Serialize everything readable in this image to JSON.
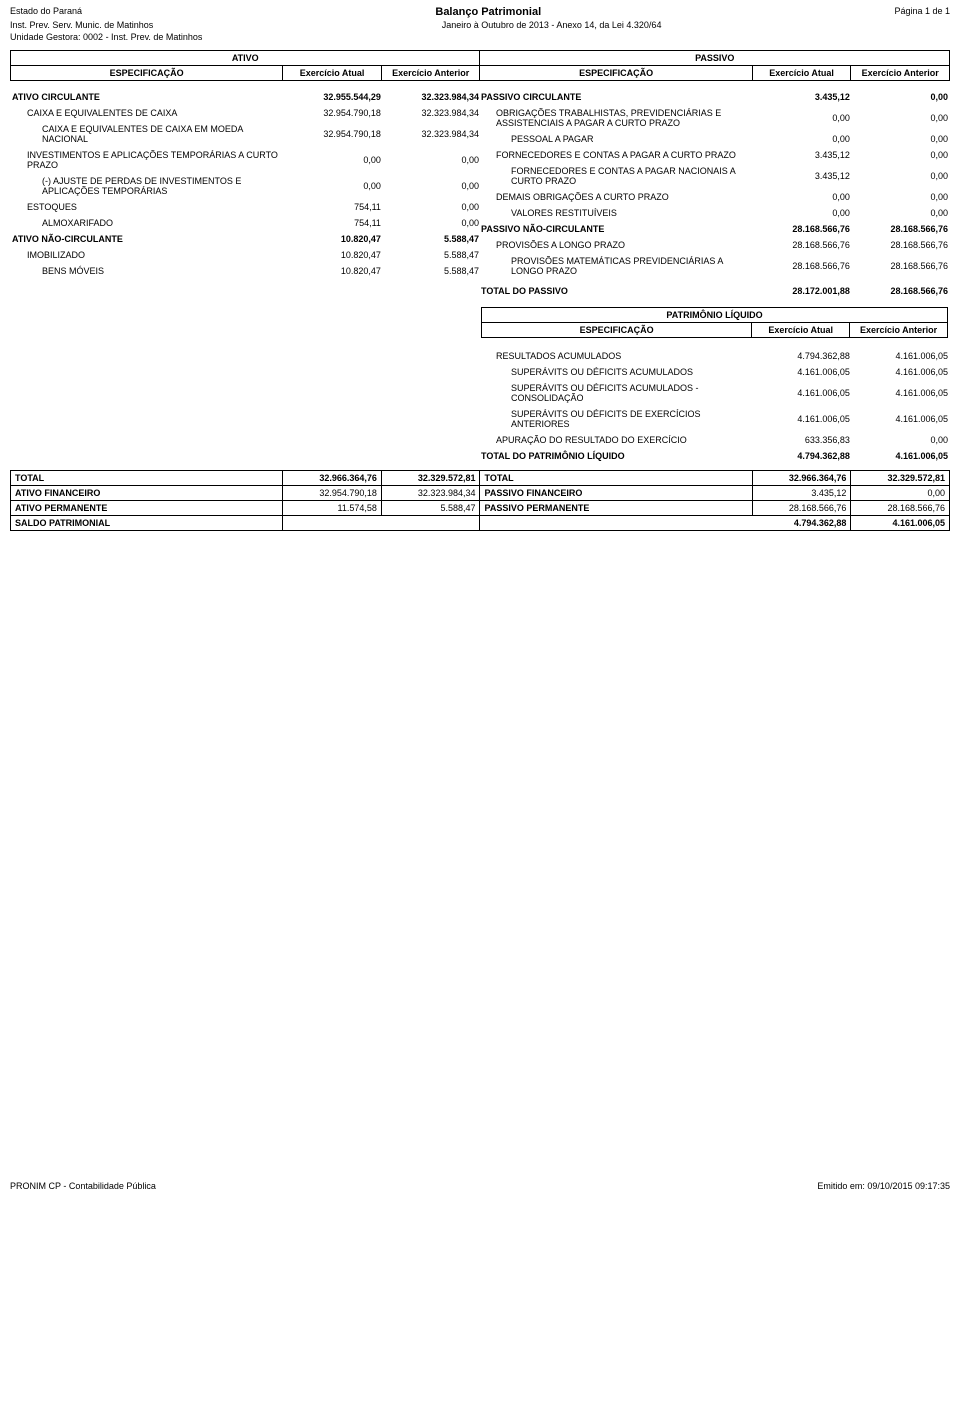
{
  "header": {
    "estado": "Estado do Paraná",
    "inst": "Inst. Prev. Serv. Munic. de Matinhos",
    "unidade": "Unidade Gestora: 0002 - Inst. Prev. de Matinhos",
    "title": "Balanço Patrimonial",
    "periodo": "Janeiro à Outubro de 2013 - Anexo 14, da Lei 4.320/64",
    "pagina": "Página 1 de 1"
  },
  "labels": {
    "ativo": "ATIVO",
    "passivo": "PASSIVO",
    "especificacao": "ESPECIFICAÇÃO",
    "ex_atual": "Exercício Atual",
    "ex_anterior": "Exercício Anterior",
    "patrimonio": "PATRIMÔNIO LÍQUIDO",
    "total_passivo": "TOTAL DO PASSIVO",
    "total_pl": "TOTAL DO PATRIMÔNIO LÍQUIDO",
    "total": "TOTAL",
    "ativo_fin": "ATIVO FINANCEIRO",
    "ativo_perm": "ATIVO PERMANENTE",
    "passivo_fin": "PASSIVO FINANCEIRO",
    "passivo_perm": "PASSIVO PERMANENTE",
    "saldo": "SALDO PATRIMONIAL"
  },
  "ativo": [
    {
      "label": "ATIVO CIRCULANTE",
      "atual": "32.955.544,29",
      "ant": "32.323.984,34",
      "bold": true,
      "indent": 0
    },
    {
      "label": "CAIXA E EQUIVALENTES DE CAIXA",
      "atual": "32.954.790,18",
      "ant": "32.323.984,34",
      "indent": 1
    },
    {
      "label": "CAIXA E EQUIVALENTES DE CAIXA EM MOEDA NACIONAL",
      "atual": "32.954.790,18",
      "ant": "32.323.984,34",
      "indent": 2
    },
    {
      "label": "INVESTIMENTOS E APLICAÇÕES TEMPORÁRIAS A CURTO PRAZO",
      "atual": "0,00",
      "ant": "0,00",
      "indent": 1
    },
    {
      "label": "(-) AJUSTE DE PERDAS DE INVESTIMENTOS E APLICAÇÕES TEMPORÁRIAS",
      "atual": "0,00",
      "ant": "0,00",
      "indent": 2
    },
    {
      "label": "ESTOQUES",
      "atual": "754,11",
      "ant": "0,00",
      "indent": 1
    },
    {
      "label": "ALMOXARIFADO",
      "atual": "754,11",
      "ant": "0,00",
      "indent": 2
    },
    {
      "label": "ATIVO NÃO-CIRCULANTE",
      "atual": "10.820,47",
      "ant": "5.588,47",
      "bold": true,
      "indent": 0
    },
    {
      "label": "IMOBILIZADO",
      "atual": "10.820,47",
      "ant": "5.588,47",
      "indent": 1
    },
    {
      "label": "BENS MÓVEIS",
      "atual": "10.820,47",
      "ant": "5.588,47",
      "indent": 2
    }
  ],
  "passivo": [
    {
      "label": "PASSIVO CIRCULANTE",
      "atual": "3.435,12",
      "ant": "0,00",
      "bold": true,
      "indent": 0
    },
    {
      "label": "OBRIGAÇÕES TRABALHISTAS, PREVIDENCIÁRIAS E ASSISTENCIAIS A PAGAR A CURTO PRAZO",
      "atual": "0,00",
      "ant": "0,00",
      "indent": 1
    },
    {
      "label": "PESSOAL A PAGAR",
      "atual": "0,00",
      "ant": "0,00",
      "indent": 2
    },
    {
      "label": "FORNECEDORES E CONTAS A PAGAR A CURTO PRAZO",
      "atual": "3.435,12",
      "ant": "0,00",
      "indent": 1
    },
    {
      "label": "FORNECEDORES E CONTAS A PAGAR NACIONAIS A CURTO PRAZO",
      "atual": "3.435,12",
      "ant": "0,00",
      "indent": 2
    },
    {
      "label": "DEMAIS OBRIGAÇÕES A CURTO PRAZO",
      "atual": "0,00",
      "ant": "0,00",
      "indent": 1
    },
    {
      "label": "VALORES RESTITUÍVEIS",
      "atual": "0,00",
      "ant": "0,00",
      "indent": 2
    },
    {
      "label": "PASSIVO NÃO-CIRCULANTE",
      "atual": "28.168.566,76",
      "ant": "28.168.566,76",
      "bold": true,
      "indent": 0
    },
    {
      "label": "PROVISÕES A LONGO PRAZO",
      "atual": "28.168.566,76",
      "ant": "28.168.566,76",
      "indent": 1
    },
    {
      "label": "PROVISÕES MATEMÁTICAS PREVIDENCIÁRIAS A LONGO PRAZO",
      "atual": "28.168.566,76",
      "ant": "28.168.566,76",
      "indent": 2
    }
  ],
  "total_passivo": {
    "atual": "28.172.001,88",
    "ant": "28.168.566,76"
  },
  "patrimonio": [
    {
      "label": "RESULTADOS ACUMULADOS",
      "atual": "4.794.362,88",
      "ant": "4.161.006,05",
      "indent": 1
    },
    {
      "label": "SUPERÁVITS OU DÉFICITS ACUMULADOS",
      "atual": "4.161.006,05",
      "ant": "4.161.006,05",
      "indent": 2
    },
    {
      "label": "SUPERÁVITS OU DÉFICITS ACUMULADOS - CONSOLIDAÇÃO",
      "atual": "4.161.006,05",
      "ant": "4.161.006,05",
      "indent": 2
    },
    {
      "label": "SUPERÁVITS OU DÉFICITS DE EXERCÍCIOS ANTERIORES",
      "atual": "4.161.006,05",
      "ant": "4.161.006,05",
      "indent": 2
    },
    {
      "label": "APURAÇÃO DO RESULTADO DO EXERCÍCIO",
      "atual": "633.356,83",
      "ant": "0,00",
      "indent": 1
    }
  ],
  "total_pl": {
    "atual": "4.794.362,88",
    "ant": "4.161.006,05"
  },
  "totals": {
    "total_atual_a": "32.966.364,76",
    "total_ant_a": "32.329.572,81",
    "total_atual_p": "32.966.364,76",
    "total_ant_p": "32.329.572,81",
    "ativo_fin_atual": "32.954.790,18",
    "ativo_fin_ant": "32.323.984,34",
    "passivo_fin_atual": "3.435,12",
    "passivo_fin_ant": "0,00",
    "ativo_perm_atual": "11.574,58",
    "ativo_perm_ant": "5.588,47",
    "passivo_perm_atual": "28.168.566,76",
    "passivo_perm_ant": "28.168.566,76",
    "saldo_atual": "4.794.362,88",
    "saldo_ant": "4.161.006,05"
  },
  "footer": {
    "left": "PRONIM CP - Contabilidade Pública",
    "right": "Emitido em: 09/10/2015 09:17:35"
  }
}
